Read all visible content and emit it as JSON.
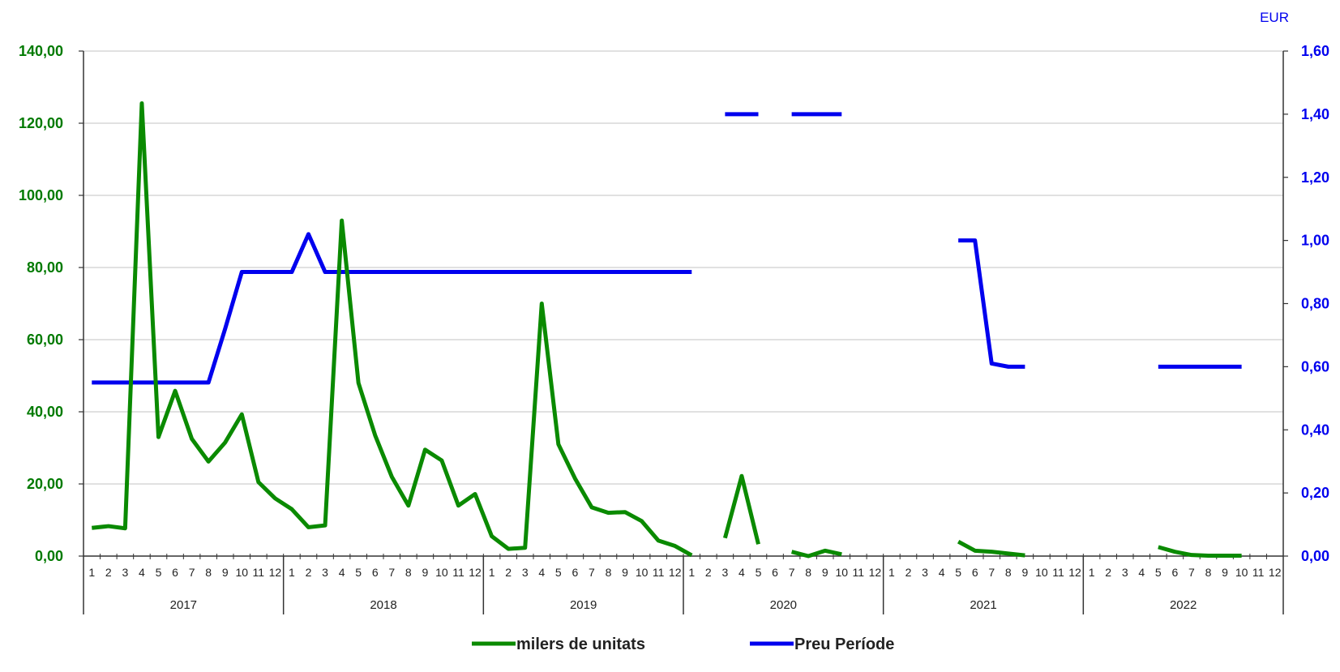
{
  "chart_data": {
    "type": "line",
    "colors": {
      "left_series": "#0a8a00",
      "right_series": "#0000ee",
      "grid": "#cfcfcf",
      "axis": "#333333"
    },
    "years": [
      "2017",
      "2018",
      "2019",
      "2020",
      "2021",
      "2022"
    ],
    "months": [
      "1",
      "2",
      "3",
      "4",
      "5",
      "6",
      "7",
      "8",
      "9",
      "10",
      "11",
      "12"
    ],
    "y_left": {
      "ticks": [
        "0,00",
        "20,00",
        "40,00",
        "60,00",
        "80,00",
        "100,00",
        "120,00",
        "140,00"
      ],
      "ylim": [
        0,
        140
      ]
    },
    "y_right": {
      "label": "EUR",
      "ticks": [
        "0,00",
        "0,20",
        "0,40",
        "0,60",
        "0,80",
        "1,00",
        "1,20",
        "1,40",
        "1,60"
      ],
      "ylim": [
        0,
        1.6
      ]
    },
    "grid": true,
    "legend_position": "bottom",
    "series": [
      {
        "name": "milers de unitats",
        "axis": "left",
        "values": [
          7.8,
          8.3,
          7.7,
          125.5,
          33.0,
          45.8,
          32.5,
          26.2,
          31.5,
          39.3,
          20.5,
          16.0,
          13.0,
          8.0,
          8.5,
          93.0,
          48.0,
          33.5,
          22.0,
          14.0,
          29.5,
          26.5,
          14.0,
          17.2,
          5.5,
          2.0,
          2.3,
          70.0,
          31.0,
          21.5,
          13.5,
          12.0,
          12.2,
          9.7,
          4.3,
          2.8,
          0.2,
          null,
          5.0,
          22.2,
          3.3,
          null,
          1.2,
          0.0,
          1.5,
          0.5,
          null,
          null,
          null,
          null,
          null,
          null,
          4.0,
          1.5,
          1.2,
          0.7,
          0.2,
          null,
          null,
          null,
          null,
          null,
          null,
          null,
          2.5,
          1.2,
          0.3,
          0.1,
          0.1,
          0.1,
          null,
          null
        ]
      },
      {
        "name": "Preu Període",
        "axis": "right",
        "values": [
          0.55,
          0.55,
          0.55,
          0.55,
          0.55,
          0.55,
          0.55,
          0.55,
          0.72,
          0.9,
          0.9,
          0.9,
          0.9,
          1.02,
          0.9,
          0.9,
          0.9,
          0.9,
          0.9,
          0.9,
          0.9,
          0.9,
          0.9,
          0.9,
          0.9,
          0.9,
          0.9,
          0.9,
          0.9,
          0.9,
          0.9,
          0.9,
          0.9,
          0.9,
          0.9,
          0.9,
          0.9,
          null,
          1.4,
          1.4,
          1.4,
          null,
          1.4,
          1.4,
          1.4,
          1.4,
          null,
          null,
          null,
          null,
          null,
          null,
          1.0,
          1.0,
          0.61,
          0.6,
          0.6,
          null,
          null,
          null,
          null,
          null,
          null,
          null,
          0.6,
          0.6,
          0.6,
          0.6,
          0.6,
          0.6,
          null,
          null
        ]
      }
    ]
  }
}
